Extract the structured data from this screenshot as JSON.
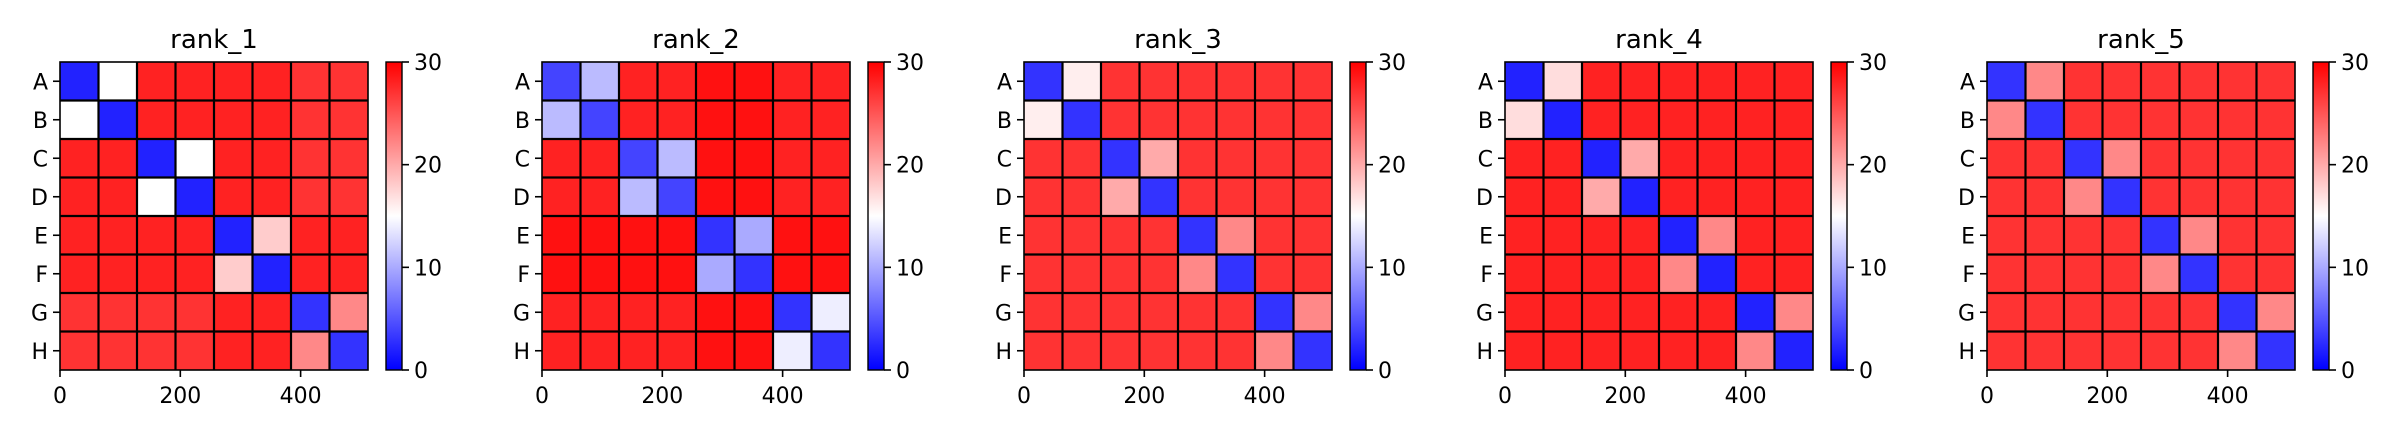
{
  "colormap": {
    "name": "bwr",
    "low": "#0000ff",
    "mid": "#ffffff",
    "high": "#ff0000"
  },
  "chart_data": [
    {
      "type": "heatmap",
      "title": "rank_1",
      "x_ticks": [
        "0",
        "200",
        "400"
      ],
      "y_labels": [
        "A",
        "B",
        "C",
        "D",
        "E",
        "F",
        "G",
        "H"
      ],
      "colorbar_ticks": [
        "0",
        "10",
        "20",
        "30"
      ],
      "vlim": [
        0,
        30
      ],
      "matrix_size": 512,
      "block_values": [
        [
          2,
          15,
          28,
          28,
          28,
          28,
          27,
          27
        ],
        [
          15,
          2,
          28,
          28,
          28,
          28,
          27,
          27
        ],
        [
          28,
          28,
          2,
          15,
          28,
          28,
          27,
          27
        ],
        [
          28,
          28,
          15,
          2,
          28,
          28,
          27,
          27
        ],
        [
          28,
          28,
          28,
          28,
          2,
          18,
          28,
          28
        ],
        [
          28,
          28,
          28,
          28,
          18,
          2,
          28,
          28
        ],
        [
          27,
          27,
          27,
          27,
          28,
          28,
          3,
          22
        ],
        [
          27,
          27,
          27,
          27,
          28,
          28,
          22,
          3
        ]
      ]
    },
    {
      "type": "heatmap",
      "title": "rank_2",
      "x_ticks": [
        "0",
        "200",
        "400"
      ],
      "y_labels": [
        "A",
        "B",
        "C",
        "D",
        "E",
        "F",
        "G",
        "H"
      ],
      "colorbar_ticks": [
        "0",
        "10",
        "20",
        "30"
      ],
      "vlim": [
        0,
        30
      ],
      "matrix_size": 512,
      "block_values": [
        [
          4,
          11,
          28,
          28,
          29,
          29,
          28,
          28
        ],
        [
          11,
          4,
          28,
          28,
          29,
          29,
          28,
          28
        ],
        [
          28,
          28,
          4,
          11,
          29,
          29,
          28,
          28
        ],
        [
          28,
          28,
          11,
          4,
          29,
          29,
          28,
          28
        ],
        [
          29,
          29,
          29,
          29,
          3,
          10,
          29,
          29
        ],
        [
          29,
          29,
          29,
          29,
          10,
          3,
          29,
          29
        ],
        [
          28,
          28,
          28,
          28,
          29,
          29,
          3,
          14
        ],
        [
          28,
          28,
          28,
          28,
          29,
          29,
          14,
          3
        ]
      ]
    },
    {
      "type": "heatmap",
      "title": "rank_3",
      "x_ticks": [
        "0",
        "200",
        "400"
      ],
      "y_labels": [
        "A",
        "B",
        "C",
        "D",
        "E",
        "F",
        "G",
        "H"
      ],
      "colorbar_ticks": [
        "0",
        "10",
        "20",
        "30"
      ],
      "vlim": [
        0,
        30
      ],
      "matrix_size": 512,
      "block_values": [
        [
          3,
          16,
          27,
          27,
          27,
          27,
          27,
          27
        ],
        [
          16,
          3,
          27,
          27,
          27,
          27,
          27,
          27
        ],
        [
          27,
          27,
          3,
          20,
          27,
          27,
          27,
          27
        ],
        [
          27,
          27,
          20,
          3,
          27,
          27,
          27,
          27
        ],
        [
          27,
          27,
          27,
          27,
          3,
          22,
          27,
          27
        ],
        [
          27,
          27,
          27,
          27,
          22,
          3,
          27,
          27
        ],
        [
          27,
          27,
          27,
          27,
          27,
          27,
          3,
          22
        ],
        [
          27,
          27,
          27,
          27,
          27,
          27,
          22,
          3
        ]
      ]
    },
    {
      "type": "heatmap",
      "title": "rank_4",
      "x_ticks": [
        "0",
        "200",
        "400"
      ],
      "y_labels": [
        "A",
        "B",
        "C",
        "D",
        "E",
        "F",
        "G",
        "H"
      ],
      "colorbar_ticks": [
        "0",
        "10",
        "20",
        "30"
      ],
      "vlim": [
        0,
        30
      ],
      "matrix_size": 512,
      "block_values": [
        [
          2,
          17,
          28,
          28,
          28,
          28,
          28,
          28
        ],
        [
          17,
          2,
          28,
          28,
          28,
          28,
          28,
          28
        ],
        [
          28,
          28,
          2,
          20,
          28,
          28,
          28,
          28
        ],
        [
          28,
          28,
          20,
          2,
          28,
          28,
          28,
          28
        ],
        [
          28,
          28,
          28,
          28,
          2,
          22,
          28,
          28
        ],
        [
          28,
          28,
          28,
          28,
          22,
          2,
          28,
          28
        ],
        [
          28,
          28,
          28,
          28,
          28,
          28,
          2,
          22
        ],
        [
          28,
          28,
          28,
          28,
          28,
          28,
          22,
          2
        ]
      ]
    },
    {
      "type": "heatmap",
      "title": "rank_5",
      "x_ticks": [
        "0",
        "200",
        "400"
      ],
      "y_labels": [
        "A",
        "B",
        "C",
        "D",
        "E",
        "F",
        "G",
        "H"
      ],
      "colorbar_ticks": [
        "0",
        "10",
        "20",
        "30"
      ],
      "vlim": [
        0,
        30
      ],
      "matrix_size": 512,
      "block_values": [
        [
          3,
          22,
          27,
          27,
          27,
          27,
          27,
          27
        ],
        [
          22,
          3,
          27,
          27,
          27,
          27,
          27,
          27
        ],
        [
          27,
          27,
          3,
          22,
          27,
          27,
          27,
          27
        ],
        [
          27,
          27,
          22,
          3,
          27,
          27,
          27,
          27
        ],
        [
          27,
          27,
          27,
          27,
          3,
          22,
          27,
          27
        ],
        [
          27,
          27,
          27,
          27,
          22,
          3,
          27,
          27
        ],
        [
          27,
          27,
          27,
          27,
          27,
          27,
          3,
          22
        ],
        [
          27,
          27,
          27,
          27,
          27,
          27,
          22,
          3
        ]
      ]
    }
  ]
}
